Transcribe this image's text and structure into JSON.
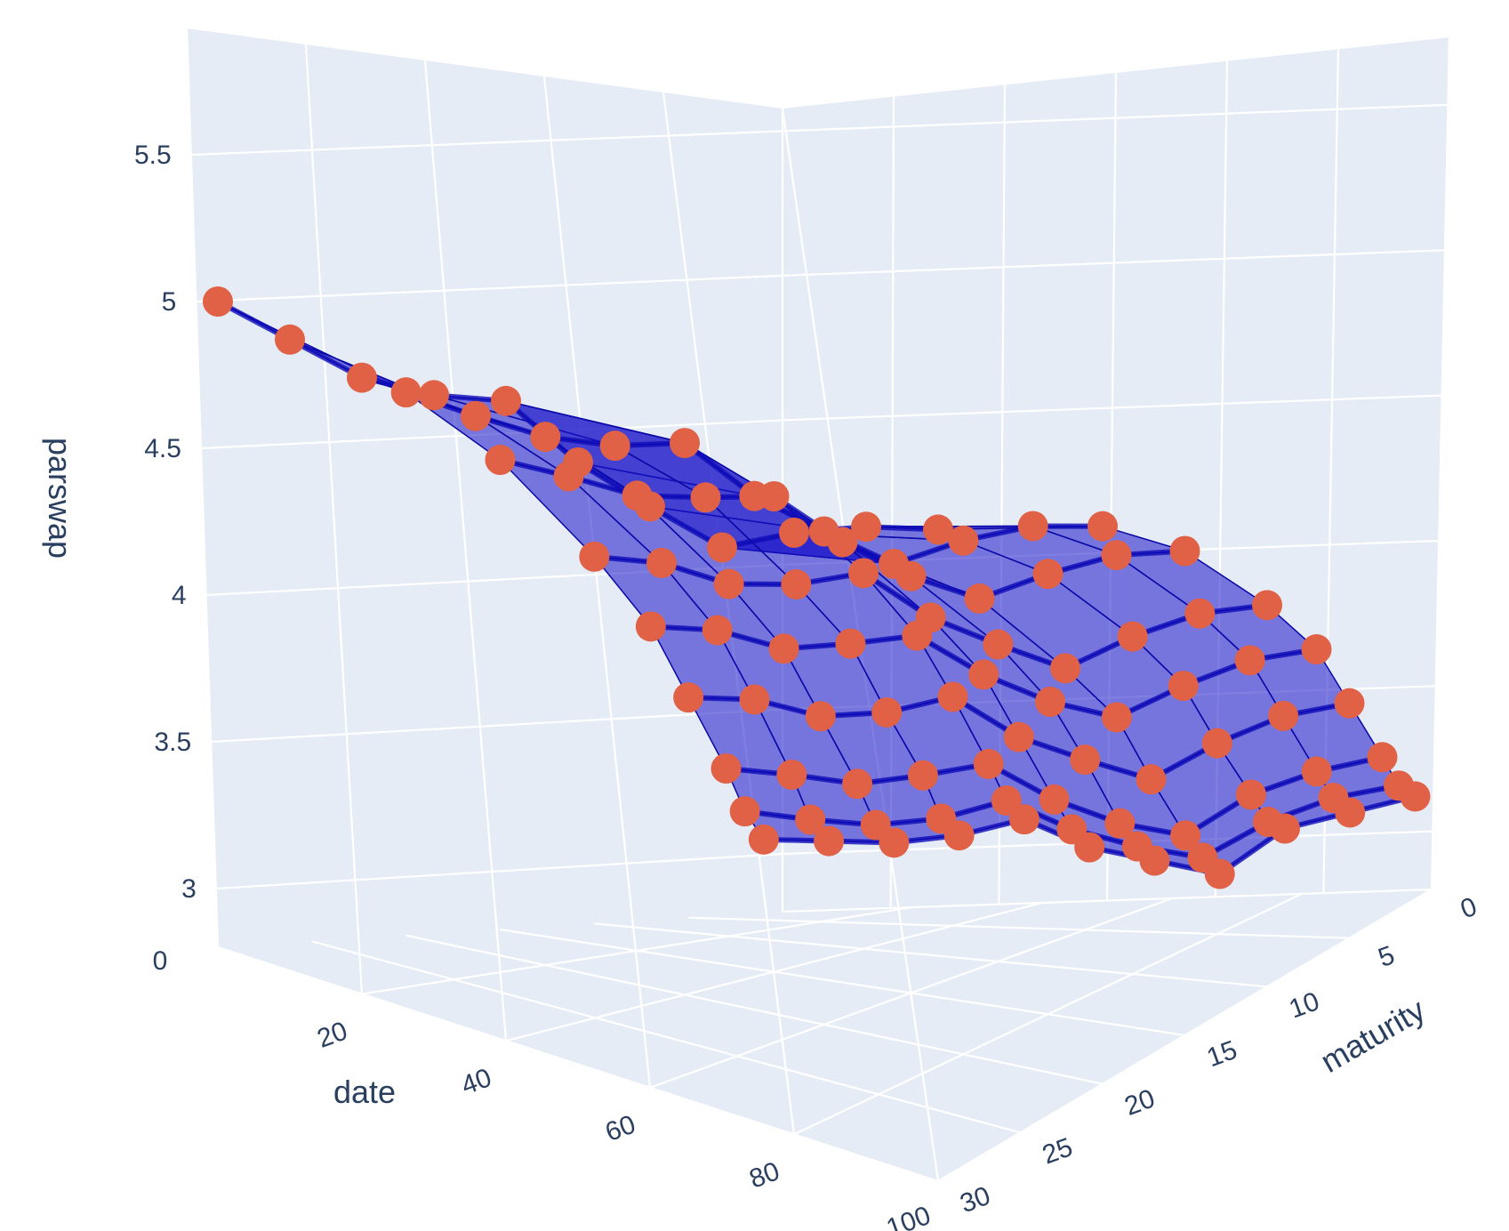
{
  "chart_data": {
    "type": "surface3d",
    "axes": {
      "x": {
        "title": "date",
        "range": [
          0,
          100
        ],
        "ticks": [
          20,
          40,
          60,
          80,
          100
        ]
      },
      "y": {
        "title": "maturity",
        "range": [
          0,
          30
        ],
        "ticks": [
          0,
          5,
          10,
          15,
          20,
          25,
          30
        ]
      },
      "z": {
        "title": "parswap",
        "range": [
          2.8,
          5.6
        ],
        "ticks": [
          3,
          3.5,
          4,
          4.5,
          5,
          5.5
        ],
        "zero_label": "0"
      }
    },
    "maturities": [
      1,
      2,
      3,
      5,
      7,
      10,
      15,
      20,
      30
    ],
    "dates_sampled": [
      0,
      10,
      20,
      30,
      40,
      50,
      60,
      70,
      80,
      90,
      100
    ],
    "parswap_grid": [
      [
        3.05,
        3.04,
        3.03,
        3.05,
        3.1,
        3.0,
        2.95,
        2.9,
        3.05,
        3.1,
        3.15
      ],
      [
        3.15,
        3.12,
        3.1,
        3.12,
        3.18,
        3.08,
        3.02,
        2.98,
        3.1,
        3.18,
        3.22
      ],
      [
        3.3,
        3.28,
        3.25,
        3.28,
        3.32,
        3.2,
        3.12,
        3.08,
        3.22,
        3.3,
        3.35
      ],
      [
        3.55,
        3.55,
        3.5,
        3.52,
        3.58,
        3.45,
        3.38,
        3.32,
        3.45,
        3.55,
        3.6
      ],
      [
        3.8,
        3.8,
        3.75,
        3.78,
        3.82,
        3.7,
        3.62,
        3.58,
        3.7,
        3.8,
        3.85
      ],
      [
        4.05,
        4.05,
        4.0,
        4.02,
        4.08,
        3.95,
        3.88,
        3.82,
        3.95,
        4.05,
        4.1
      ],
      [
        4.4,
        4.38,
        4.35,
        4.38,
        4.42,
        4.3,
        4.22,
        4.18,
        4.3,
        4.4,
        4.45
      ],
      [
        4.65,
        4.62,
        4.6,
        4.62,
        4.68,
        4.55,
        4.48,
        4.42,
        4.55,
        4.65,
        4.7
      ],
      [
        5.0,
        4.95,
        4.9,
        4.92,
        4.98,
        4.85,
        4.78,
        4.72,
        4.85,
        4.95,
        5.02
      ]
    ],
    "series": [
      {
        "kind": "surface",
        "color": "#1a14c8"
      },
      {
        "kind": "markers",
        "color": "#e06146"
      }
    ],
    "grid": true,
    "legend": "none"
  }
}
